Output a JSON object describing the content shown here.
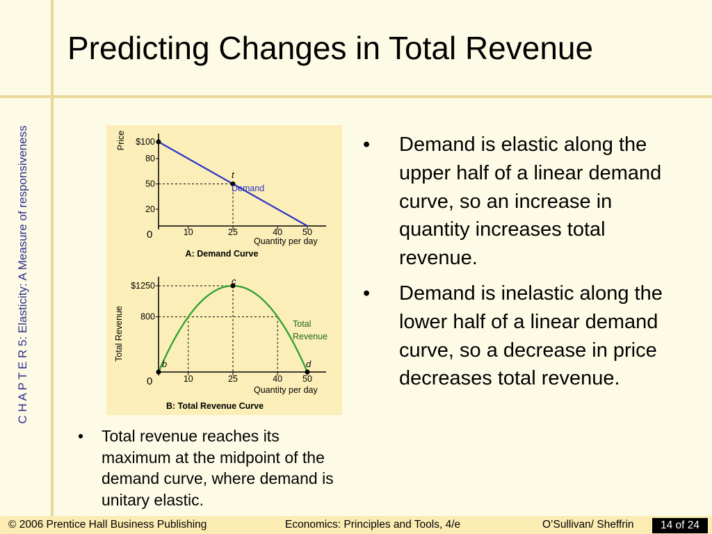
{
  "slide": {
    "title": "Predicting Changes in Total Revenue",
    "sidebar_text": "C H A P T E R 5: Elasticity: A Measure of responsiveness",
    "bullets_right": [
      "Demand is elastic along the upper half of a linear demand curve, so an increase in quantity increases total revenue.",
      "Demand is inelastic along the lower half of a linear demand curve, so a decrease in price decreases total revenue."
    ],
    "bullet_left": "Total revenue reaches its maximum at the midpoint of the demand curve, where demand is unitary elastic.",
    "bullet_symbol": "•"
  },
  "footer": {
    "copyright": "© 2006 Prentice Hall Business Publishing",
    "book": "Economics: Principles and Tools, 4/e",
    "authors": "O’Sullivan/ Sheffrin",
    "page": "14 of 24"
  },
  "colors": {
    "demand_line": "#2a32c8",
    "revenue_curve": "#33a333",
    "sidebar_text": "#2c2f8c"
  },
  "chart_data": [
    {
      "type": "line",
      "title": "A: Demand Curve",
      "xlabel": "Quantity per day",
      "ylabel": "Price",
      "x_ticks": [
        "0",
        "10",
        "25",
        "40",
        "50"
      ],
      "y_ticks": [
        "$100",
        "80",
        "50",
        "20"
      ],
      "xlim": [
        0,
        50
      ],
      "ylim": [
        0,
        100
      ],
      "series": [
        {
          "name": "Demand",
          "x": [
            0,
            50
          ],
          "y": [
            100,
            0
          ]
        }
      ],
      "annotations": [
        {
          "label": "t",
          "x": 25,
          "y": 50
        }
      ]
    },
    {
      "type": "line",
      "title": "B: Total Revenue Curve",
      "xlabel": "Quantity per day",
      "ylabel": "Total Revenue",
      "x_ticks": [
        "0",
        "10",
        "25",
        "40",
        "50"
      ],
      "y_ticks": [
        "$1250",
        "800"
      ],
      "xlim": [
        0,
        50
      ],
      "ylim": [
        0,
        1250
      ],
      "series": [
        {
          "name": "Total Revenue",
          "x": [
            0,
            10,
            25,
            40,
            50
          ],
          "y": [
            0,
            800,
            1250,
            800,
            0
          ]
        }
      ],
      "annotations": [
        {
          "label": "b",
          "x": 0,
          "y": 0
        },
        {
          "label": "c",
          "x": 25,
          "y": 1250
        },
        {
          "label": "d",
          "x": 50,
          "y": 0
        }
      ]
    }
  ]
}
